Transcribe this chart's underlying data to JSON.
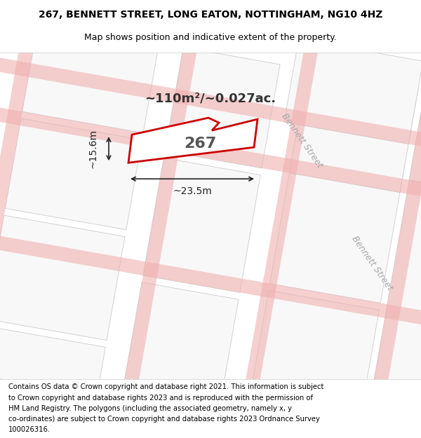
{
  "title_line1": "267, BENNETT STREET, LONG EATON, NOTTINGHAM, NG10 4HZ",
  "title_line2": "Map shows position and indicative extent of the property.",
  "footer_text": "Contains OS data © Crown copyright and database right 2021. This information is subject to Crown copyright and database rights 2023 and is reproduced with the permission of HM Land Registry. The polygons (including the associated geometry, namely x, y co-ordinates) are subject to Crown copyright and database rights 2023 Ordnance Survey 100026316.",
  "area_label": "~110m²/~0.027ac.",
  "number_label": "267",
  "dim_width": "~23.5m",
  "dim_height": "~15.6m",
  "bg_color": "#f5f5f5",
  "map_bg": "#f0f0f0",
  "road_color": "#e8e8e8",
  "parcel_fill": "#e8e8e8",
  "parcel_stroke": "#c8c8c8",
  "highlight_color": "#cc0000",
  "highlight_fill": "#ffffff",
  "dim_color": "#222222",
  "road_line_color": "#f0a0a0",
  "street_label": "Bennett Street",
  "title_fontsize": 10,
  "subtitle_fontsize": 9,
  "footer_fontsize": 7.5
}
